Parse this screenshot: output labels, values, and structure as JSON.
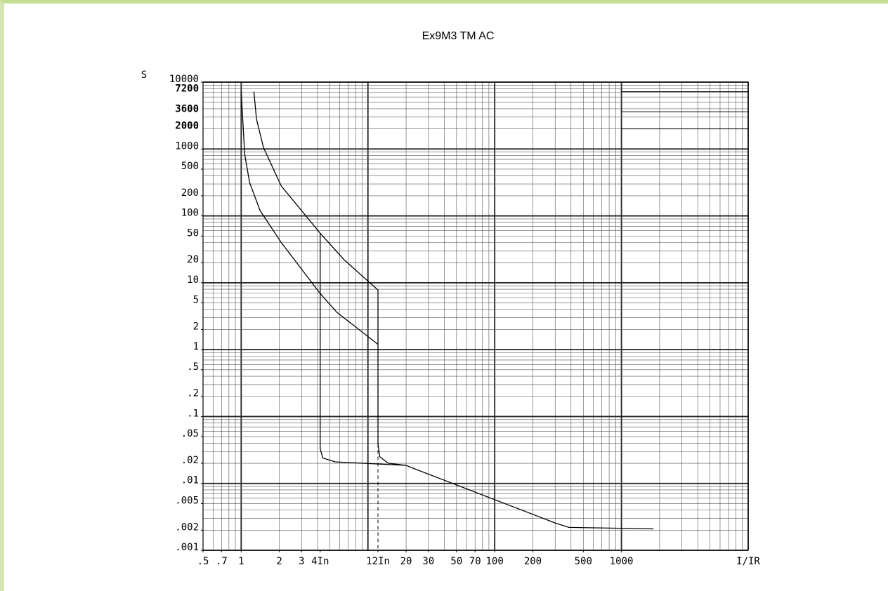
{
  "chart_data": {
    "type": "line",
    "title": "Ex9M3 TM AC",
    "ylabel": "S",
    "xlabel": "I/IR",
    "xscale": "log",
    "yscale": "log",
    "minor_grid": true,
    "color": "#000000",
    "highlight_color": "#1aa7d8",
    "xlim": [
      0.5,
      10000
    ],
    "ylim": [
      0.001,
      10000
    ],
    "xticks": [
      {
        "value": 0.5,
        "label": ".5"
      },
      {
        "value": 0.7,
        "label": ".7"
      },
      1,
      2,
      3,
      {
        "value": 4.2,
        "label": "4In",
        "highlight": true
      },
      {
        "value": 12,
        "label": "12In",
        "highlight": true
      },
      20,
      30,
      50,
      70,
      100,
      200,
      500,
      1000
    ],
    "yticks": [
      10000,
      7200,
      3600,
      2000,
      1000,
      500,
      200,
      100,
      50,
      20,
      10,
      5,
      2,
      1,
      {
        "value": 0.5,
        "label": ".5"
      },
      {
        "value": 0.2,
        "label": ".2"
      },
      {
        "value": 0.1,
        "label": ".1"
      },
      {
        "value": 0.05,
        "label": ".05"
      },
      {
        "value": 0.02,
        "label": ".02"
      },
      {
        "value": 0.01,
        "label": ".01"
      },
      {
        "value": 0.005,
        "label": ".005"
      },
      {
        "value": 0.002,
        "label": ".002"
      },
      {
        "value": 0.001,
        "label": ".001"
      }
    ],
    "series": [
      {
        "color": "#000000",
        "x": [
          1.0,
          1.066,
          1.165,
          1.41,
          2.07,
          4.2,
          5.7,
          12
        ],
        "values": [
          7200,
          830,
          316,
          120,
          40,
          6.9,
          3.6,
          1.2
        ]
      },
      {
        "color": "#000000",
        "x": [
          1.26,
          1.32,
          1.5,
          2.07,
          4.2,
          6.5,
          12,
          12,
          12.4,
          14.5,
          20
        ],
        "values": [
          7200,
          2800,
          1050,
          280,
          55,
          22,
          7.8,
          0.039,
          0.025,
          0.02,
          0.0186
        ]
      },
      {
        "color": "#000000",
        "x": [
          4.2,
          4.2,
          4.4,
          5.5,
          20,
          23.4,
          300,
          385,
          1790
        ],
        "values": [
          55,
          0.033,
          0.024,
          0.021,
          0.0186,
          0.0165,
          0.00256,
          0.0022,
          0.00209
        ]
      }
    ]
  }
}
